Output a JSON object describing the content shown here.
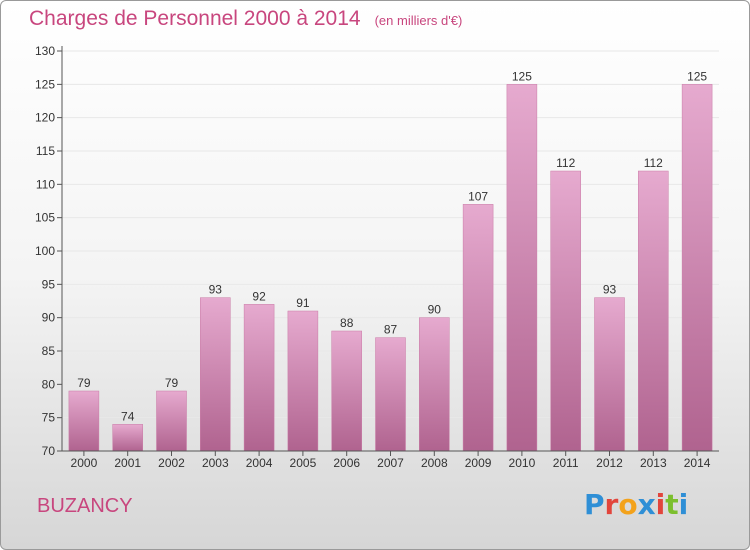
{
  "header": {
    "title": "Charges de Personnel 2000 à 2014",
    "subtitle": "(en milliers d'€)"
  },
  "footer": {
    "commune": "BUZANCY",
    "logo_letters": [
      "P",
      "r",
      "o",
      "x",
      "i",
      "t",
      "i"
    ],
    "logo_colors": [
      "#2f8fd6",
      "#e2453c",
      "#f3a21b",
      "#2f8fd6",
      "#e2453c",
      "#7cbf2e",
      "#2f8fd6"
    ]
  },
  "colors": {
    "bar_top": "#e6aacf",
    "bar_bottom": "#b0638f",
    "bar_edge": "#c97aa6",
    "axis": "#555555",
    "grid": "#e8e8e8"
  },
  "chart_data": {
    "type": "bar",
    "categories": [
      "2000",
      "2001",
      "2002",
      "2003",
      "2004",
      "2005",
      "2006",
      "2007",
      "2008",
      "2009",
      "2010",
      "2011",
      "2012",
      "2013",
      "2014"
    ],
    "values": [
      79,
      74,
      79,
      93,
      92,
      91,
      88,
      87,
      90,
      107,
      125,
      112,
      93,
      112,
      125
    ],
    "title": "Charges de Personnel 2000 à 2014",
    "subtitle": "(en milliers d'€)",
    "ylim": [
      70,
      130
    ],
    "yticks": [
      70,
      75,
      80,
      85,
      90,
      95,
      100,
      105,
      110,
      115,
      120,
      125,
      130
    ],
    "grid": true,
    "legend": "none"
  }
}
